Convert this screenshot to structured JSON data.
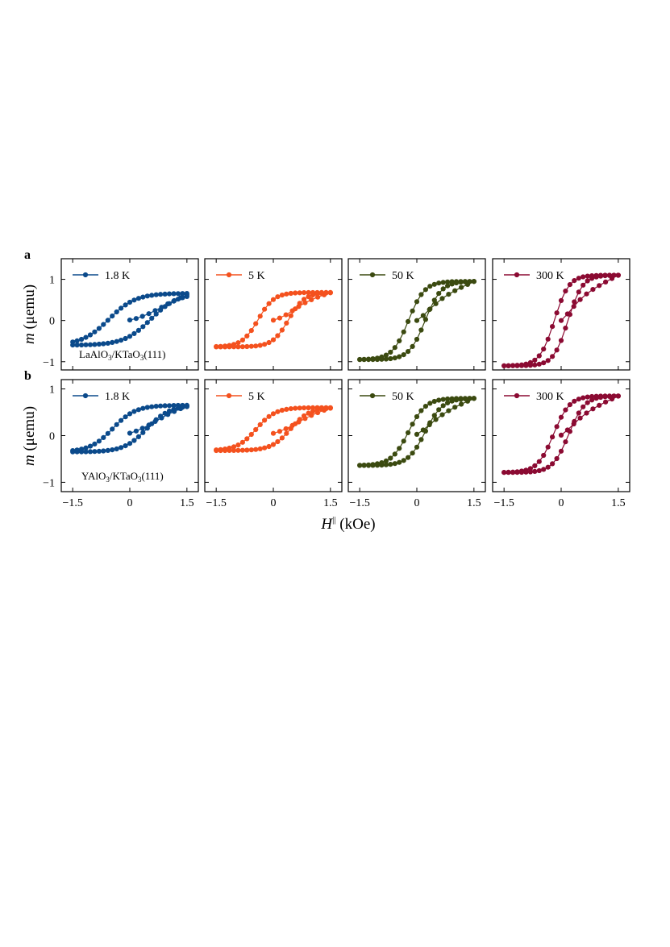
{
  "figure": {
    "ylabel_italic": "m",
    "ylabel_rest": " (μemu)",
    "xlabel_italic": "H",
    "xlabel_sup": "||",
    "xlabel_rest": " (kOe)"
  },
  "rows": [
    {
      "panel_label": "a",
      "sample_pre": "LaAlO",
      "sample_sub1": "3",
      "sample_mid": "/KTaO",
      "sample_sub2": "3",
      "sample_post": "(111)"
    },
    {
      "panel_label": "b",
      "sample_pre": "YAlO",
      "sample_sub1": "3",
      "sample_mid": "/KTaO",
      "sample_sub2": "3",
      "sample_post": "(111)"
    }
  ],
  "chart_data": [
    {
      "type": "line",
      "row": "a",
      "series": [
        {
          "name": "1.8 K",
          "color": "#0b4a8b"
        }
      ],
      "xlim": [
        -1.8,
        1.8
      ],
      "ylim": [
        -1.2,
        1.5
      ],
      "x_ticks": [
        -1.5,
        0,
        1.5
      ],
      "y_ticks": [
        -1,
        0,
        1
      ],
      "grid": false,
      "legend": "top-left",
      "loop": {
        "Ms": 0.63,
        "offset": 0.03,
        "Hc": 0.55,
        "w": 0.7,
        "up_start": -0.58,
        "down_end": 0.7
      }
    },
    {
      "type": "line",
      "row": "a",
      "series": [
        {
          "name": "5 K",
          "color": "#f4511e"
        }
      ],
      "xlim": [
        -1.8,
        1.8
      ],
      "ylim": [
        -1.2,
        1.5
      ],
      "x_ticks": [
        -1.5,
        0,
        1.5
      ],
      "y_ticks": [
        -1,
        0,
        1
      ],
      "grid": false,
      "legend": "top-left",
      "loop": {
        "Ms": 0.66,
        "offset": 0.02,
        "Hc": 0.4,
        "w": 0.42
      }
    },
    {
      "type": "line",
      "row": "a",
      "series": [
        {
          "name": "50 K",
          "color": "#3b4a10"
        }
      ],
      "xlim": [
        -1.8,
        1.8
      ],
      "ylim": [
        -1.2,
        1.5
      ],
      "x_ticks": [
        -1.5,
        0,
        1.5
      ],
      "y_ticks": [
        -1,
        0,
        1
      ],
      "grid": false,
      "legend": "top-left",
      "loop": {
        "Ms": 0.95,
        "offset": 0.0,
        "Hc": 0.22,
        "w": 0.42
      }
    },
    {
      "type": "line",
      "row": "a",
      "series": [
        {
          "name": "300 K",
          "color": "#8b0a32"
        }
      ],
      "xlim": [
        -1.8,
        1.8
      ],
      "ylim": [
        -1.2,
        1.5
      ],
      "x_ticks": [
        -1.5,
        0,
        1.5
      ],
      "y_ticks": [
        -1,
        0,
        1
      ],
      "grid": false,
      "legend": "top-left",
      "loop": {
        "Ms": 1.1,
        "offset": 0.0,
        "Hc": 0.18,
        "w": 0.38
      }
    },
    {
      "type": "line",
      "row": "b",
      "series": [
        {
          "name": "1.8 K",
          "color": "#0b4a8b"
        }
      ],
      "xlim": [
        -1.8,
        1.8
      ],
      "ylim": [
        -1.2,
        1.2
      ],
      "x_ticks": [
        -1.5,
        0,
        1.5
      ],
      "y_ticks": [
        -1,
        0,
        1
      ],
      "grid": false,
      "legend": "top-left",
      "loop": {
        "Ms": 0.5,
        "offset": 0.15,
        "Hc": 0.45,
        "w": 0.6
      }
    },
    {
      "type": "line",
      "row": "b",
      "series": [
        {
          "name": "5 K",
          "color": "#f4511e"
        }
      ],
      "xlim": [
        -1.8,
        1.8
      ],
      "ylim": [
        -1.2,
        1.2
      ],
      "x_ticks": [
        -1.5,
        0,
        1.5
      ],
      "y_ticks": [
        -1,
        0,
        1
      ],
      "grid": false,
      "legend": "top-left",
      "loop": {
        "Ms": 0.46,
        "offset": 0.14,
        "Hc": 0.45,
        "w": 0.5
      }
    },
    {
      "type": "line",
      "row": "b",
      "series": [
        {
          "name": "50 K",
          "color": "#3b4a10"
        }
      ],
      "xlim": [
        -1.8,
        1.8
      ],
      "ylim": [
        -1.2,
        1.2
      ],
      "x_ticks": [
        -1.5,
        0,
        1.5
      ],
      "y_ticks": [
        -1,
        0,
        1
      ],
      "grid": false,
      "legend": "top-left",
      "loop": {
        "Ms": 0.72,
        "offset": 0.08,
        "Hc": 0.22,
        "w": 0.45
      }
    },
    {
      "type": "line",
      "row": "b",
      "series": [
        {
          "name": "300 K",
          "color": "#8b0a32"
        }
      ],
      "xlim": [
        -1.8,
        1.8
      ],
      "ylim": [
        -1.2,
        1.2
      ],
      "x_ticks": [
        -1.5,
        0,
        1.5
      ],
      "y_ticks": [
        -1,
        0,
        1
      ],
      "grid": false,
      "legend": "top-left",
      "loop": {
        "Ms": 0.82,
        "offset": 0.03,
        "Hc": 0.2,
        "w": 0.42
      }
    }
  ]
}
